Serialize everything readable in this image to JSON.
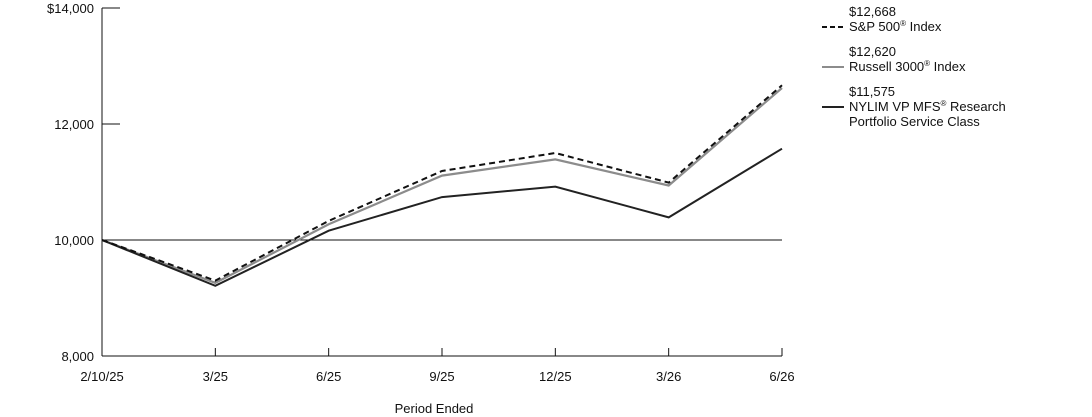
{
  "chart_data": {
    "type": "line",
    "title": "",
    "xlabel": "Period Ended",
    "ylabel": "",
    "categories": [
      "2/10/25",
      "3/25",
      "6/25",
      "9/25",
      "12/25",
      "3/26",
      "6/26"
    ],
    "ylim": [
      8000,
      14000
    ],
    "y_ticks": [
      {
        "value": 8000,
        "label": "8,000"
      },
      {
        "value": 10000,
        "label": "10,000"
      },
      {
        "value": 12000,
        "label": "12,000"
      },
      {
        "value": 14000,
        "label": "$14,000"
      }
    ],
    "reference_line": 10000,
    "grid": false,
    "legend_position": "right",
    "series": [
      {
        "key": "sp500",
        "name": "S&P 500® Index",
        "name_parts": [
          "S&P 500",
          "®",
          " Index"
        ],
        "end_label": "$12,668",
        "color": "#111111",
        "dashed": true,
        "values": [
          10000,
          9300,
          10330,
          11190,
          11500,
          10990,
          12668
        ]
      },
      {
        "key": "russell",
        "name": "Russell 3000® Index",
        "name_parts": [
          "Russell 3000",
          "®",
          " Index"
        ],
        "end_label": "$12,620",
        "color": "#8c8c8c",
        "dashed": false,
        "values": [
          10000,
          9260,
          10270,
          11110,
          11390,
          10940,
          12620
        ]
      },
      {
        "key": "nylim",
        "name": "NYLIM VP MFS® Research Portfolio Service Class",
        "name_parts": [
          "NYLIM VP MFS",
          "®",
          " Research"
        ],
        "name_line2": "Portfolio Service Class",
        "end_label": "$11,575",
        "color": "#222222",
        "dashed": false,
        "values": [
          10000,
          9210,
          10160,
          10740,
          10920,
          10390,
          11575
        ]
      }
    ]
  }
}
